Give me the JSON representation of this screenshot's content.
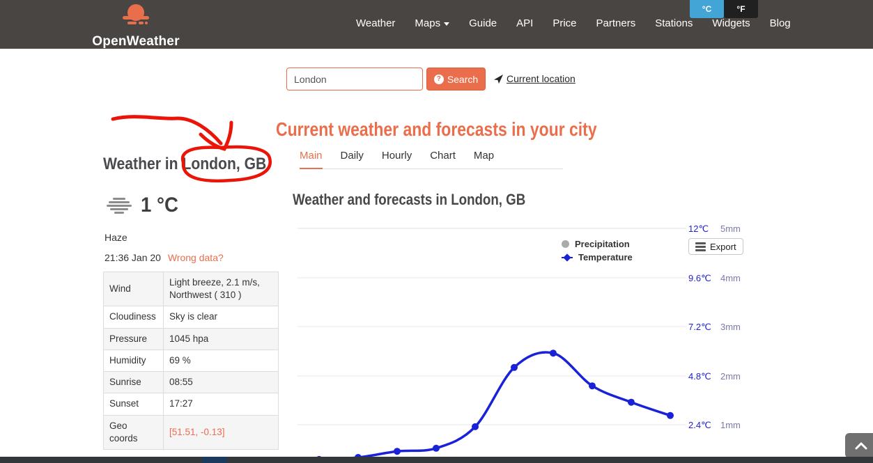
{
  "header": {
    "brand": "OpenWeather",
    "nav": [
      {
        "label": "Weather"
      },
      {
        "label": "Maps",
        "has_dropdown": true
      },
      {
        "label": "Guide"
      },
      {
        "label": "API"
      },
      {
        "label": "Price"
      },
      {
        "label": "Partners"
      },
      {
        "label": "Stations"
      },
      {
        "label": "Widgets"
      },
      {
        "label": "Blog"
      }
    ],
    "unit_toggle": {
      "celsius": "°C",
      "fahrenheit": "°F",
      "active": "celsius"
    }
  },
  "search": {
    "value": "London",
    "button_label": "Search",
    "current_location_label": "Current location"
  },
  "page": {
    "promo_title": "Current weather and forecasts in your city",
    "tabs": [
      {
        "label": "Main",
        "active": true
      },
      {
        "label": "Daily",
        "active": false
      },
      {
        "label": "Hourly",
        "active": false
      },
      {
        "label": "Chart",
        "active": false
      },
      {
        "label": "Map",
        "active": false
      }
    ],
    "location_heading": "Weather in London, GB",
    "current": {
      "temperature": "1 °C",
      "condition": "Haze",
      "datetime": "21:36 Jan 20",
      "wrong_data_label": "Wrong data?"
    },
    "details": [
      {
        "label": "Wind",
        "value": "Light breeze, 2.1 m/s, Northwest ( 310 )"
      },
      {
        "label": "Cloudiness",
        "value": "Sky is clear"
      },
      {
        "label": "Pressure",
        "value": "1045 hpa"
      },
      {
        "label": "Humidity",
        "value": "69 %"
      },
      {
        "label": "Sunrise",
        "value": "08:55"
      },
      {
        "label": "Sunset",
        "value": "17:27"
      },
      {
        "label": "Geo coords",
        "value": "[51.51, -0.13]"
      }
    ],
    "chart_heading": "Weather and forecasts in London, GB"
  },
  "chart_data": {
    "type": "line",
    "title": "Weather and forecasts in London, GB",
    "series": [
      {
        "name": "Temperature",
        "color": "#1a22d8",
        "values": [
          0.7,
          0.8,
          1.1,
          1.25,
          2.3,
          5.2,
          5.9,
          4.3,
          3.5,
          2.85
        ]
      },
      {
        "name": "Precipitation",
        "color": "#aaaaaa",
        "values": []
      }
    ],
    "x_tick_labels_visible": false,
    "y_axis_temperature": {
      "ticks": [
        "12℃",
        "9.6℃",
        "7.2℃",
        "4.8℃",
        "2.4℃"
      ],
      "range_c": [
        0,
        12
      ]
    },
    "y_axis_precipitation": {
      "ticks": [
        "5mm",
        "4mm",
        "3mm",
        "2mm",
        "1mm"
      ],
      "range_mm": [
        0,
        5
      ]
    },
    "grid": "horizontal-only",
    "legend": {
      "position": "top-right",
      "entries": [
        "Precipitation",
        "Temperature"
      ]
    },
    "export_label": "Export"
  },
  "annotation": {
    "color": "#ea1508",
    "target": "London, GB"
  },
  "colors": {
    "accent_orange": "#eb6e4c",
    "header_bg": "#494542",
    "toggle_blue": "#42a5d6",
    "temp_tick_blue": "#2222cf",
    "precip_tick_slate": "#7a7aa6",
    "curve_blue": "#1a22d8"
  }
}
